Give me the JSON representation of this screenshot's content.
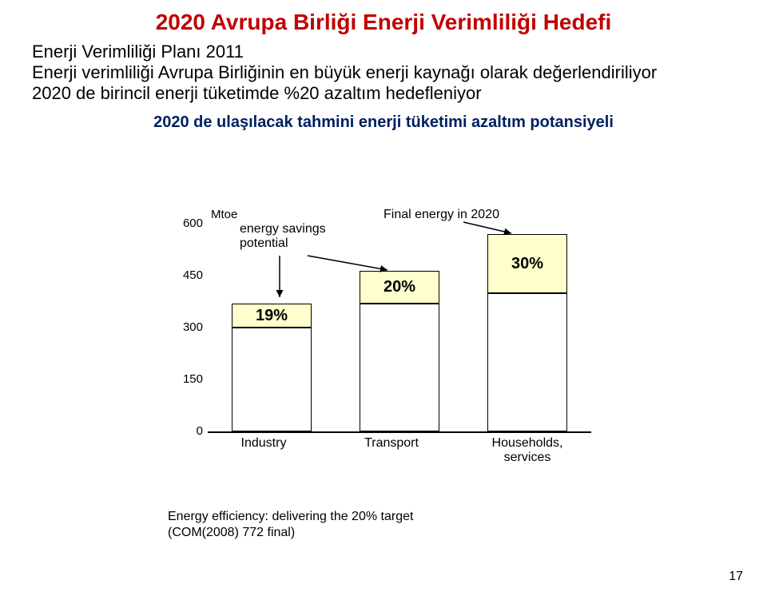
{
  "title": {
    "text": "2020 Avrupa Birliği Enerji Verimliliği Hedefi",
    "color": "#c00000",
    "fontsize": 28
  },
  "subtitle": {
    "line1": "Enerji Verimliliği Planı 2011",
    "line2": "Enerji verimliliği Avrupa Birliğinin en büyük enerji kaynağı olarak değerlendiriliyor",
    "line3": "2020 de birincil enerji tüketimde %20 azaltım hedefleniyor",
    "fontsize": 22,
    "color": "#000000"
  },
  "subhead": {
    "text": "2020 de ulaşılacak tahmini enerji tüketimi azaltım potansiyeli",
    "fontsize": 20,
    "color": "#002060"
  },
  "chart": {
    "type": "bar-stacked",
    "y_axis_label": "Mtoe",
    "ylim": [
      0,
      600
    ],
    "ytick_step": 150,
    "yticks": [
      0,
      150,
      300,
      450,
      600
    ],
    "annotation_left": "energy savings potential",
    "annotation_right": "Final energy in 2020",
    "top_fill_color": "#feffcc",
    "base_fill_color": "#ffffff",
    "border_color": "#000000",
    "label_fontsize": 16,
    "pct_fontsize": 20,
    "categories": [
      {
        "name": "Industry",
        "base": 300,
        "savings": 70,
        "pct": "19%"
      },
      {
        "name": "Transport",
        "base": 370,
        "savings": 95,
        "pct": "20%"
      },
      {
        "name": "Households, services",
        "base": 400,
        "savings": 170,
        "pct": "30%"
      }
    ]
  },
  "footer": {
    "line1": "Energy efficiency: delivering the 20% target",
    "line2": "(COM(2008) 772 final)",
    "fontsize": 16
  },
  "page_number": "17"
}
